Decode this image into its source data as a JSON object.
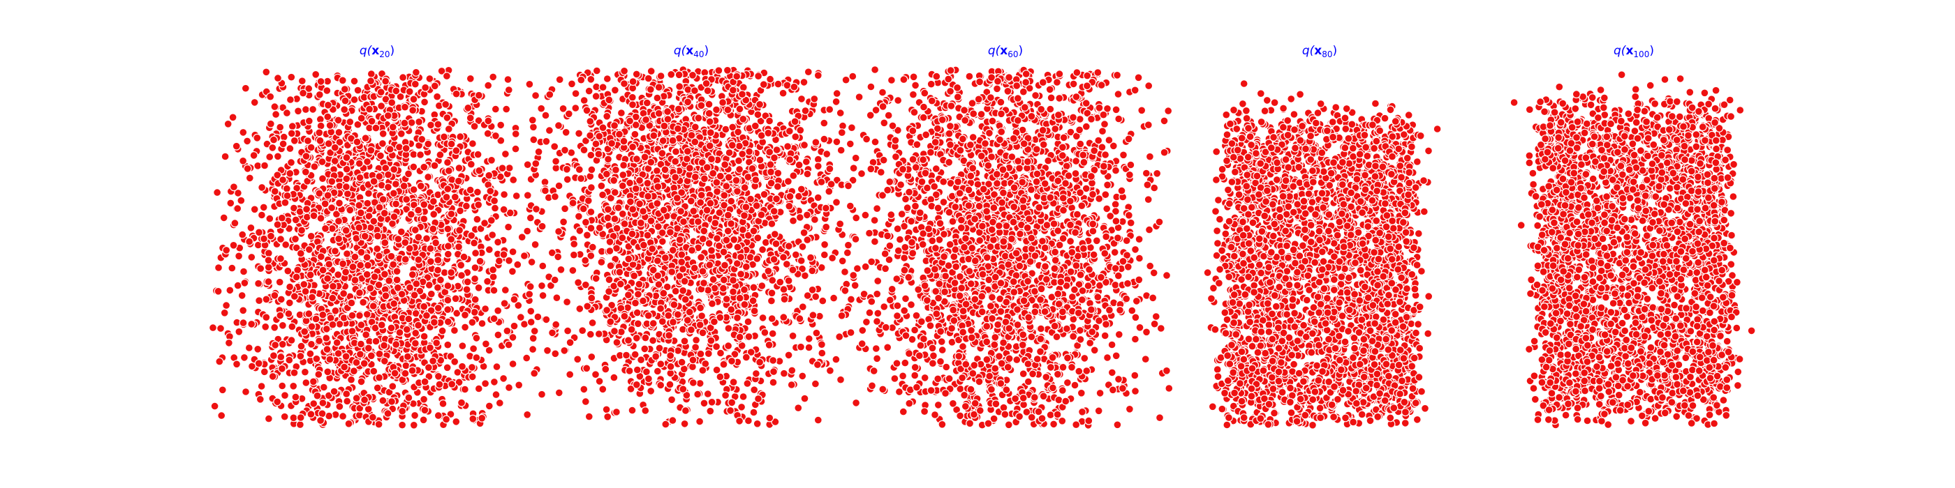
{
  "chart_data": [
    {
      "type": "scatter",
      "title_prefix": "q(",
      "title_var": "x",
      "title_sub": "20",
      "title_suffix": ")",
      "point_color": "#ee1111",
      "edge_color": "#ffffff",
      "axes_visible": false,
      "grid": false,
      "distribution": {
        "n_points": 3000,
        "center": [
          0.0,
          0.0
        ],
        "spread": [
          1.0,
          1.0
        ],
        "shape": "gaussian"
      }
    },
    {
      "type": "scatter",
      "title_prefix": "q(",
      "title_var": "x",
      "title_sub": "40",
      "title_suffix": ")",
      "point_color": "#ee1111",
      "edge_color": "#ffffff",
      "axes_visible": false,
      "grid": false,
      "distribution": {
        "n_points": 3000,
        "center": [
          0.0,
          0.3
        ],
        "spread": [
          1.0,
          0.9
        ],
        "shape": "gaussian"
      }
    },
    {
      "type": "scatter",
      "title_prefix": "q(",
      "title_var": "x",
      "title_sub": "60",
      "title_suffix": ")",
      "point_color": "#ee1111",
      "edge_color": "#ffffff",
      "axes_visible": false,
      "grid": false,
      "distribution": {
        "n_points": 3000,
        "center": [
          0.0,
          0.1
        ],
        "spread": [
          1.0,
          1.0
        ],
        "shape": "gaussian"
      }
    },
    {
      "type": "scatter",
      "title_prefix": "q(",
      "title_var": "x",
      "title_sub": "80",
      "title_suffix": ")",
      "point_color": "#ee1111",
      "edge_color": "#ffffff",
      "axes_visible": false,
      "grid": false,
      "distribution": {
        "n_points": 3000,
        "center": [
          0.0,
          -0.2
        ],
        "spread": [
          1.0,
          1.0
        ],
        "shape": "box"
      }
    },
    {
      "type": "scatter",
      "title_prefix": "q(",
      "title_var": "x",
      "title_sub": "100",
      "title_suffix": ")",
      "point_color": "#ee1111",
      "edge_color": "#ffffff",
      "axes_visible": false,
      "grid": false,
      "distribution": {
        "n_points": 3000,
        "center": [
          0.0,
          -0.1
        ],
        "spread": [
          1.0,
          1.0
        ],
        "shape": "box"
      }
    }
  ]
}
